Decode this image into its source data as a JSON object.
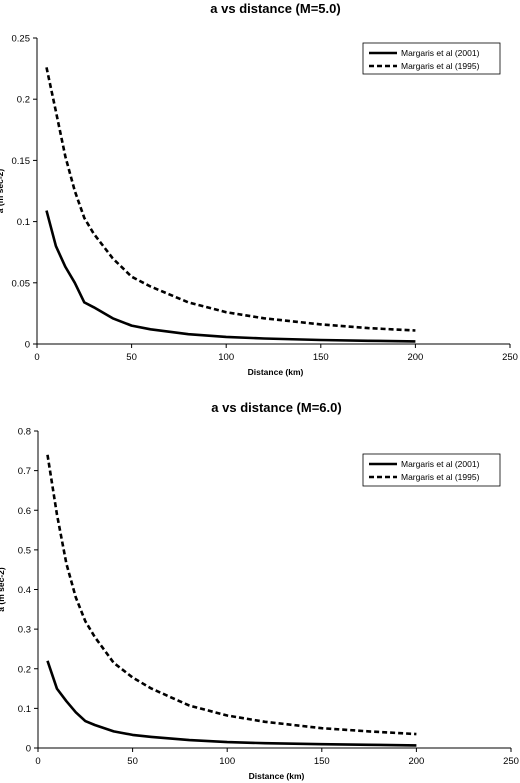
{
  "chart_data": [
    {
      "type": "line",
      "title": "a vs distance (M=5.0)",
      "xlabel": "Distance (km)",
      "ylabel": "a (m sec-2)",
      "xlim": [
        0,
        250
      ],
      "ylim": [
        0,
        0.25
      ],
      "x_ticks": [
        "0",
        "50",
        "100",
        "150",
        "200",
        "250"
      ],
      "y_ticks": [
        "0",
        "0.05",
        "0.1",
        "0.15",
        "0.2",
        "0.25"
      ],
      "legend_position": "top-right",
      "series": [
        {
          "name": "Margaris et al (2001)",
          "style": "solid",
          "x": [
            5,
            10,
            15,
            20,
            25,
            30,
            40,
            50,
            60,
            80,
            100,
            120,
            150,
            175,
            200
          ],
          "y": [
            0.109,
            0.08,
            0.063,
            0.05,
            0.034,
            0.03,
            0.021,
            0.015,
            0.012,
            0.008,
            0.0058,
            0.0045,
            0.0033,
            0.0026,
            0.0021
          ]
        },
        {
          "name": "Margaris et al (1995)",
          "style": "dashed",
          "x": [
            5,
            10,
            15,
            20,
            25,
            30,
            40,
            50,
            60,
            80,
            100,
            120,
            150,
            175,
            200
          ],
          "y": [
            0.226,
            0.19,
            0.153,
            0.125,
            0.103,
            0.09,
            0.07,
            0.055,
            0.047,
            0.034,
            0.026,
            0.021,
            0.016,
            0.013,
            0.011
          ]
        }
      ]
    },
    {
      "type": "line",
      "title": "a vs distance (M=6.0)",
      "xlabel": "Distance (km)",
      "ylabel": "a (m sec-2)",
      "xlim": [
        0,
        250
      ],
      "ylim": [
        0,
        0.8
      ],
      "x_ticks": [
        "0",
        "50",
        "100",
        "150",
        "200",
        "250"
      ],
      "y_ticks": [
        "0",
        "0.1",
        "0.2",
        "0.3",
        "0.4",
        "0.5",
        "0.6",
        "0.7",
        "0.8"
      ],
      "legend_position": "top-right",
      "series": [
        {
          "name": "Margaris et al (2001)",
          "style": "solid",
          "x": [
            5,
            10,
            15,
            20,
            25,
            30,
            40,
            50,
            60,
            80,
            100,
            120,
            150,
            175,
            200
          ],
          "y": [
            0.22,
            0.15,
            0.118,
            0.09,
            0.068,
            0.058,
            0.042,
            0.033,
            0.028,
            0.02,
            0.015,
            0.012,
            0.0095,
            0.008,
            0.0065
          ]
        },
        {
          "name": "Margaris et al (1995)",
          "style": "dashed",
          "x": [
            5,
            10,
            15,
            20,
            25,
            30,
            40,
            50,
            60,
            80,
            100,
            120,
            150,
            175,
            200
          ],
          "y": [
            0.74,
            0.59,
            0.465,
            0.38,
            0.32,
            0.28,
            0.215,
            0.178,
            0.15,
            0.107,
            0.082,
            0.066,
            0.05,
            0.042,
            0.035
          ]
        }
      ]
    }
  ]
}
